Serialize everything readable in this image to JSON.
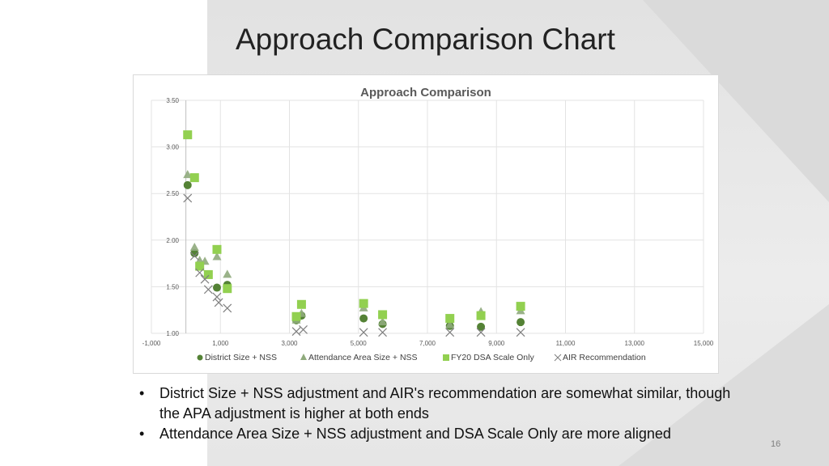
{
  "slide": {
    "title": "Approach Comparison Chart",
    "page_number": "16",
    "bullets": [
      "District Size + NSS adjustment and AIR's recommendation are somewhat similar, though the APA adjustment is higher at both ends",
      "Attendance Area Size + NSS adjustment and DSA Scale Only are more aligned"
    ]
  },
  "chart_data": {
    "type": "scatter",
    "title": "Approach Comparison",
    "xlim": [
      -1000,
      15000
    ],
    "ylim": [
      1.0,
      3.5
    ],
    "xticks": [
      -1000,
      1000,
      3000,
      5000,
      7000,
      9000,
      11000,
      13000,
      15000
    ],
    "xtick_labels": [
      "-1,000",
      "1,000",
      "3,000",
      "5,000",
      "7,000",
      "9,000",
      "11,000",
      "13,000",
      "15,000"
    ],
    "yticks": [
      1.0,
      1.5,
      2.0,
      2.5,
      3.0,
      3.5
    ],
    "ytick_labels": [
      "1.00",
      "1.50",
      "2.00",
      "2.50",
      "3.00",
      "3.50"
    ],
    "grid": true,
    "legend_position": "bottom",
    "series": [
      {
        "name": "District Size + NSS",
        "marker": "circle",
        "color": "#548235",
        "x": [
          50,
          250,
          900,
          1200,
          3200,
          3350,
          5150,
          5700,
          7650,
          8550,
          9700
        ],
        "y": [
          2.59,
          1.86,
          1.49,
          1.52,
          1.14,
          1.19,
          1.16,
          1.1,
          1.08,
          1.07,
          1.12
        ]
      },
      {
        "name": "Attendance Area Size + NSS",
        "marker": "triangle",
        "color": "#8faa7c",
        "x": [
          50,
          250,
          400,
          550,
          900,
          1200,
          3200,
          3350,
          5150,
          5700,
          7650,
          8550,
          9700
        ],
        "y": [
          2.7,
          1.92,
          1.78,
          1.77,
          1.82,
          1.63,
          1.14,
          1.21,
          1.27,
          1.12,
          1.09,
          1.23,
          1.24
        ]
      },
      {
        "name": "FY20 DSA Scale Only",
        "marker": "square",
        "color": "#92d050",
        "x": [
          50,
          250,
          400,
          650,
          900,
          1200,
          3200,
          3350,
          5150,
          5700,
          7650,
          8550,
          9700
        ],
        "y": [
          3.13,
          2.67,
          1.72,
          1.63,
          1.9,
          1.48,
          1.18,
          1.31,
          1.32,
          1.2,
          1.16,
          1.19,
          1.29
        ]
      },
      {
        "name": "AIR Recommendation",
        "marker": "x",
        "color": "#7f7f7f",
        "x": [
          50,
          250,
          400,
          550,
          650,
          900,
          950,
          1200,
          3200,
          3400,
          5150,
          5700,
          7650,
          8550,
          9700
        ],
        "y": [
          2.45,
          1.83,
          1.65,
          1.58,
          1.47,
          1.39,
          1.33,
          1.27,
          1.02,
          1.04,
          1.01,
          1.01,
          1.01,
          1.01,
          1.01
        ]
      }
    ]
  }
}
